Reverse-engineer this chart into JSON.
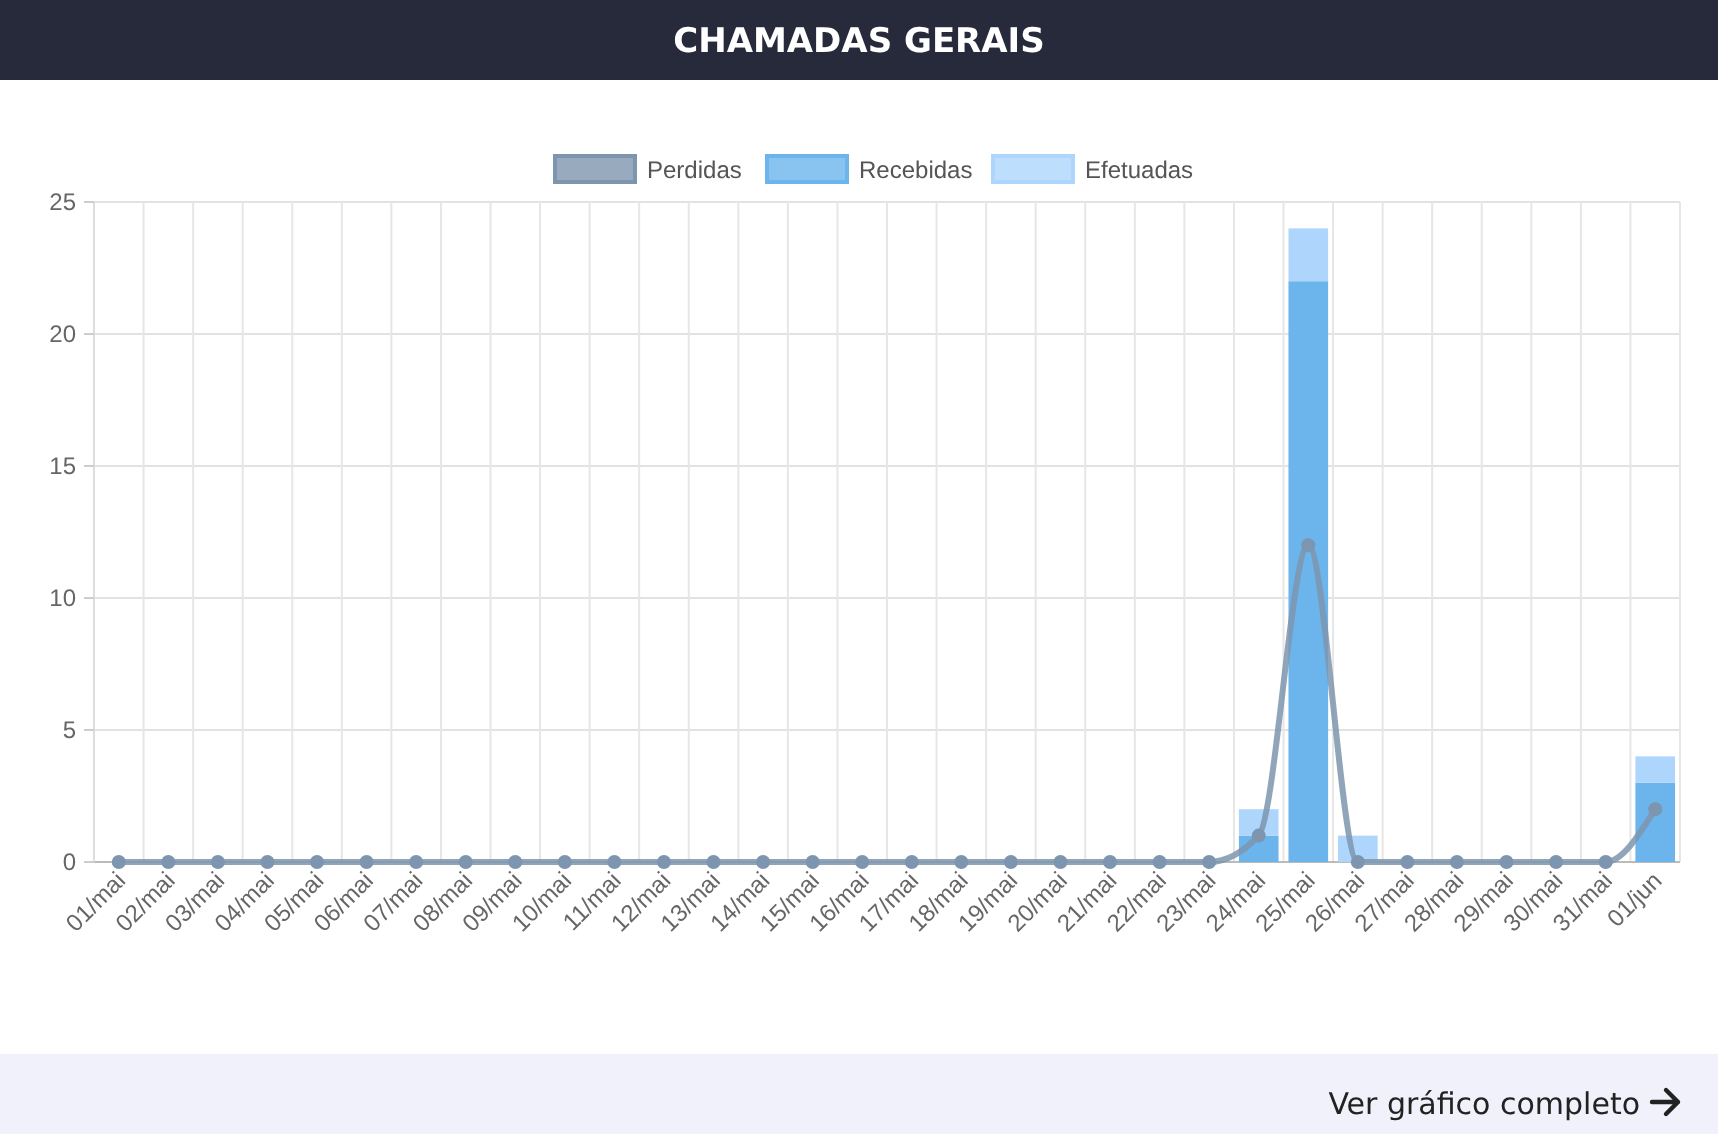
{
  "chart_data": {
    "type": "bar",
    "title": "CHAMADAS GERAIS",
    "categories": [
      "01/mai",
      "02/mai",
      "03/mai",
      "04/mai",
      "05/mai",
      "06/mai",
      "07/mai",
      "08/mai",
      "09/mai",
      "10/mai",
      "11/mai",
      "12/mai",
      "13/mai",
      "14/mai",
      "15/mai",
      "16/mai",
      "17/mai",
      "18/mai",
      "19/mai",
      "20/mai",
      "21/mai",
      "22/mai",
      "23/mai",
      "24/mai",
      "25/mai",
      "26/mai",
      "27/mai",
      "28/mai",
      "29/mai",
      "30/mai",
      "31/mai",
      "01/jun"
    ],
    "series": [
      {
        "name": "Perdidas",
        "type": "line",
        "color": "#7d95ae",
        "values": [
          0,
          0,
          0,
          0,
          0,
          0,
          0,
          0,
          0,
          0,
          0,
          0,
          0,
          0,
          0,
          0,
          0,
          0,
          0,
          0,
          0,
          0,
          0,
          1,
          12,
          0,
          0,
          0,
          0,
          0,
          0,
          2
        ]
      },
      {
        "name": "Recebidas",
        "color": "#6bb5ec",
        "values": [
          0,
          0,
          0,
          0,
          0,
          0,
          0,
          0,
          0,
          0,
          0,
          0,
          0,
          0,
          0,
          0,
          0,
          0,
          0,
          0,
          0,
          0,
          0,
          1,
          22,
          0,
          0,
          0,
          0,
          0,
          0,
          3
        ]
      },
      {
        "name": "Efetuadas",
        "color": "#aed6fc",
        "values": [
          0,
          0,
          0,
          0,
          0,
          0,
          0,
          0,
          0,
          0,
          0,
          0,
          0,
          0,
          0,
          0,
          0,
          0,
          0,
          0,
          0,
          0,
          0,
          1,
          2,
          1,
          0,
          0,
          0,
          0,
          0,
          1
        ]
      }
    ],
    "stacked": true,
    "ylim": [
      0,
      25
    ],
    "yticks": [
      0,
      5,
      10,
      15,
      20,
      25
    ],
    "grid": true,
    "legend": "top",
    "marker": "circle",
    "annotations": [
      "Ver gráfico completo"
    ]
  }
}
